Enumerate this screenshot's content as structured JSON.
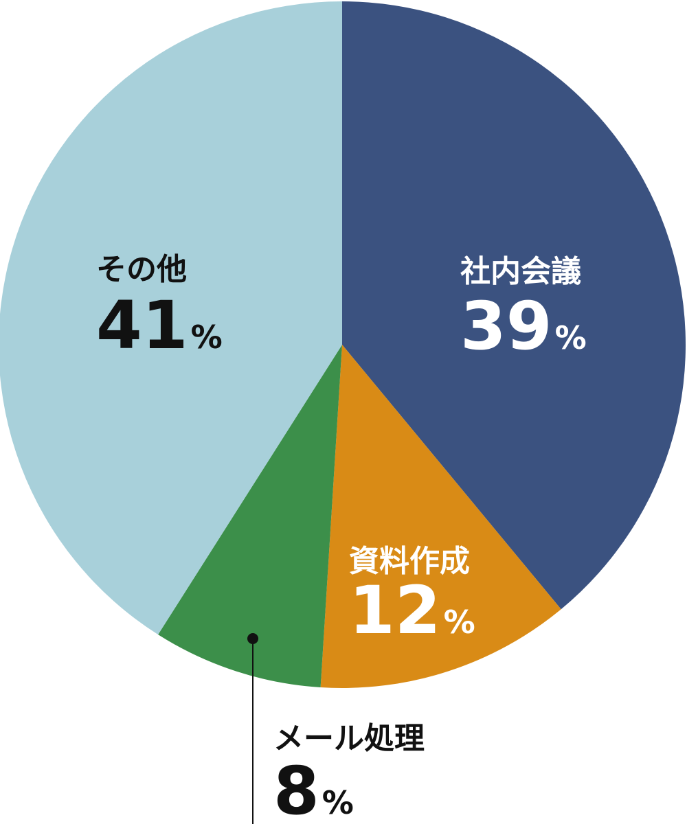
{
  "chart_data": {
    "type": "pie",
    "title": "",
    "slices": [
      {
        "label": "社内会議",
        "value": 39,
        "value_text": "39",
        "unit": "%",
        "color": "#3b5280",
        "text_color": "#ffffff"
      },
      {
        "label": "資料作成",
        "value": 12,
        "value_text": "12",
        "unit": "%",
        "color": "#d98b16",
        "text_color": "#ffffff"
      },
      {
        "label": "メール処理",
        "value": 8,
        "value_text": "8",
        "unit": "%",
        "color": "#3c8f4a",
        "text_color": "#111111"
      },
      {
        "label": "その他",
        "value": 41,
        "value_text": "41",
        "unit": "%",
        "color": "#a8d0da",
        "text_color": "#111111"
      }
    ],
    "start": "12 o'clock",
    "direction": "clockwise",
    "legend": "none"
  }
}
